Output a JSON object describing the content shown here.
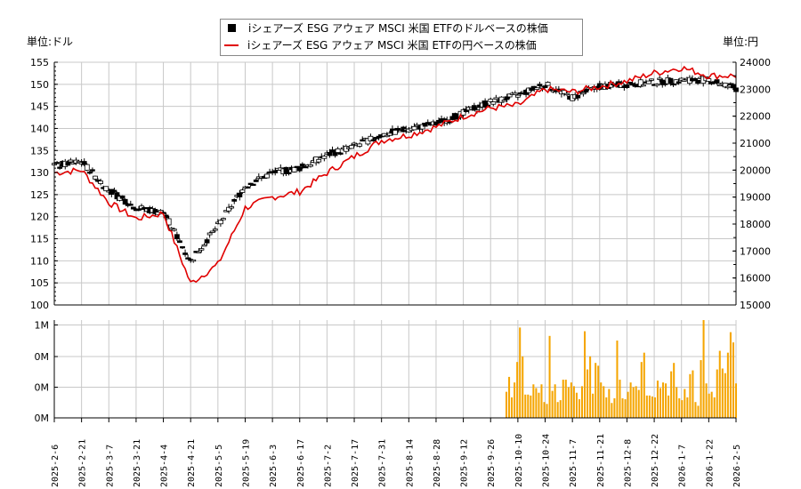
{
  "legend": {
    "series_usd": "iシェアーズ ESG アウェア MSCI 米国 ETFのドルベースの株価",
    "series_jpy": "iシェアーズ ESG アウェア MSCI 米国 ETFの円ベースの株価"
  },
  "units": {
    "left": "単位:ドル",
    "right": "単位:円"
  },
  "colors": {
    "candle": "#000000",
    "jpy_line": "#e00000",
    "volume": "#f5a500",
    "grid": "#c8c8c8"
  },
  "chart_data": [
    {
      "type": "candlestick+line",
      "title": "",
      "xlabel": "",
      "ylabel_left": "単位:ドル",
      "ylabel_right": "単位:円",
      "ylim_left": [
        100,
        155
      ],
      "ylim_right": [
        15000,
        24000
      ],
      "yticks_left": [
        100,
        105,
        110,
        115,
        120,
        125,
        130,
        135,
        140,
        145,
        150,
        155
      ],
      "yticks_right": [
        15000,
        16000,
        17000,
        18000,
        19000,
        20000,
        21000,
        22000,
        23000,
        24000
      ],
      "grid": true,
      "legend_position": "top-center",
      "x": [
        "2025-2-6",
        "2025-2-21",
        "2025-3-7",
        "2025-3-21",
        "2025-4-4",
        "2025-4-21",
        "2025-5-5",
        "2025-5-19",
        "2025-6-3",
        "2025-6-17",
        "2025-7-2",
        "2025-7-17",
        "2025-7-31",
        "2025-8-14",
        "2025-8-28",
        "2025-9-12",
        "2025-9-26",
        "2025-10-10",
        "2025-10-24",
        "2025-11-7",
        "2025-11-21",
        "2025-12-8",
        "2025-12-22",
        "2026-1-7",
        "2026-1-22",
        "2026-2-5"
      ],
      "series": [
        {
          "name": "iシェアーズ ESG アウェア MSCI 米国 ETFのドルベースの株価",
          "axis": "left",
          "values": [
            131.5,
            132.5,
            126,
            122,
            121,
            110,
            118,
            127,
            130,
            131,
            134,
            136,
            138.5,
            140,
            141,
            143.5,
            146,
            147.5,
            150,
            147,
            149.5,
            150,
            150.5,
            151,
            151,
            149
          ]
        },
        {
          "name": "iシェアーズ ESG アウェア MSCI 米国 ETFの円ベースの株価",
          "axis": "right",
          "values": [
            19900,
            20000,
            18800,
            18200,
            18400,
            15800,
            16500,
            18600,
            19000,
            19200,
            19900,
            20500,
            21100,
            21300,
            21600,
            22000,
            22300,
            22400,
            23000,
            22900,
            23100,
            23300,
            23600,
            23800,
            23500,
            23500
          ]
        }
      ]
    },
    {
      "type": "bar",
      "title": "",
      "ylabel": "",
      "yticks": [
        "0M",
        "0M",
        "0M",
        "1M"
      ],
      "ylim": [
        0,
        1.05
      ],
      "grid": true,
      "note": "volume bars only present from ~2025-10-6 onward",
      "x_start": "2025-10-6",
      "values": [
        0.28,
        0.44,
        0.22,
        0.38,
        0.6,
        0.97,
        0.66,
        0.25,
        0.25,
        0.24,
        0.36,
        0.32,
        0.27,
        0.36,
        0.17,
        0.15,
        0.88,
        0.29,
        0.36,
        0.17,
        0.19,
        0.41,
        0.41,
        0.33,
        0.38,
        0.34,
        0.27,
        0.2,
        0.34,
        0.93,
        0.52,
        0.66,
        0.26,
        0.59,
        0.56,
        0.38,
        0.34,
        0.22,
        0.31,
        0.16,
        0.21,
        0.83,
        0.41,
        0.21,
        0.2,
        0.28,
        0.38,
        0.33,
        0.34,
        0.3,
        0.6,
        0.7,
        0.24,
        0.24,
        0.23,
        0.22,
        0.4,
        0.32,
        0.38,
        0.37,
        0.24,
        0.5,
        0.59,
        0.33,
        0.21,
        0.19,
        0.31,
        0.22,
        0.47,
        0.51,
        0.17,
        0.13,
        0.62,
        1.05,
        0.37,
        0.26,
        0.28,
        0.22,
        0.52,
        0.72,
        0.53,
        0.48,
        0.7,
        0.92,
        0.81,
        0.37
      ]
    }
  ],
  "x_tick_labels": [
    "2025-2-6",
    "2025-2-21",
    "2025-3-7",
    "2025-3-21",
    "2025-4-4",
    "2025-4-21",
    "2025-5-5",
    "2025-5-19",
    "2025-6-3",
    "2025-6-17",
    "2025-7-2",
    "2025-7-17",
    "2025-7-31",
    "2025-8-14",
    "2025-8-28",
    "2025-9-12",
    "2025-9-26",
    "2025-10-10",
    "2025-10-24",
    "2025-11-7",
    "2025-11-21",
    "2025-12-8",
    "2025-12-22",
    "2026-1-7",
    "2026-1-22",
    "2026-2-5"
  ],
  "volume_tick_labels": [
    "1M",
    "0M",
    "0M",
    "0M"
  ]
}
